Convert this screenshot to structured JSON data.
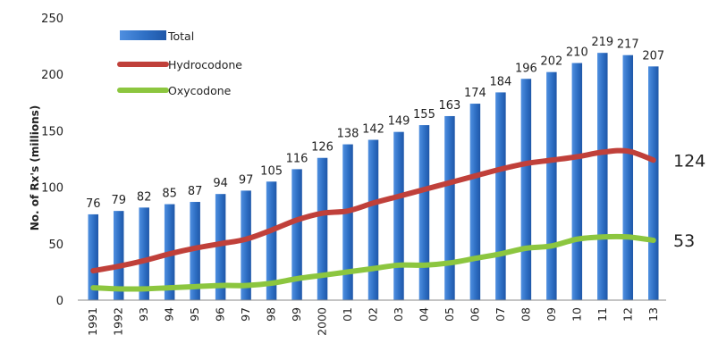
{
  "chart_data": {
    "type": "bar",
    "title": "",
    "xlabel": "",
    "ylabel": "No. of Rx's (millions)",
    "ylim": [
      0,
      250
    ],
    "yticks": [
      0,
      50,
      100,
      150,
      200,
      250
    ],
    "categories": [
      "1991",
      "1992",
      "93",
      "94",
      "95",
      "96",
      "97",
      "98",
      "99",
      "2000",
      "01",
      "02",
      "03",
      "04",
      "05",
      "06",
      "07",
      "08",
      "09",
      "10",
      "11",
      "12",
      "13"
    ],
    "series": [
      {
        "name": "Total",
        "type": "bar",
        "color": "#2e6fc4",
        "values": [
          76,
          79,
          82,
          85,
          87,
          94,
          97,
          105,
          116,
          126,
          138,
          142,
          149,
          155,
          163,
          174,
          184,
          196,
          202,
          210,
          219,
          217,
          207
        ],
        "labels": [
          "76",
          "79",
          "82",
          "85",
          "87",
          "94",
          "97",
          "105",
          "116",
          "126",
          "138",
          "142",
          "149",
          "155",
          "163",
          "174",
          "184",
          "196",
          "202",
          "210",
          "219",
          "217",
          "207"
        ]
      },
      {
        "name": "Hydrocodone",
        "type": "line",
        "color": "#c0403a",
        "values": [
          26,
          30,
          35,
          41,
          46,
          50,
          54,
          62,
          71,
          77,
          79,
          86,
          92,
          98,
          104,
          110,
          116,
          121,
          124,
          127,
          131,
          132,
          124
        ],
        "end_label": "124"
      },
      {
        "name": "Oxycodone",
        "type": "line",
        "color": "#8cc63f",
        "values": [
          11,
          10,
          10,
          11,
          12,
          13,
          13,
          15,
          19,
          22,
          25,
          28,
          31,
          31,
          33,
          37,
          41,
          46,
          48,
          54,
          56,
          56,
          53
        ],
        "end_label": "53"
      }
    ],
    "legend": [
      "Total",
      "Hydrocodone",
      "Oxycodone"
    ],
    "legend_position": "top-left"
  }
}
